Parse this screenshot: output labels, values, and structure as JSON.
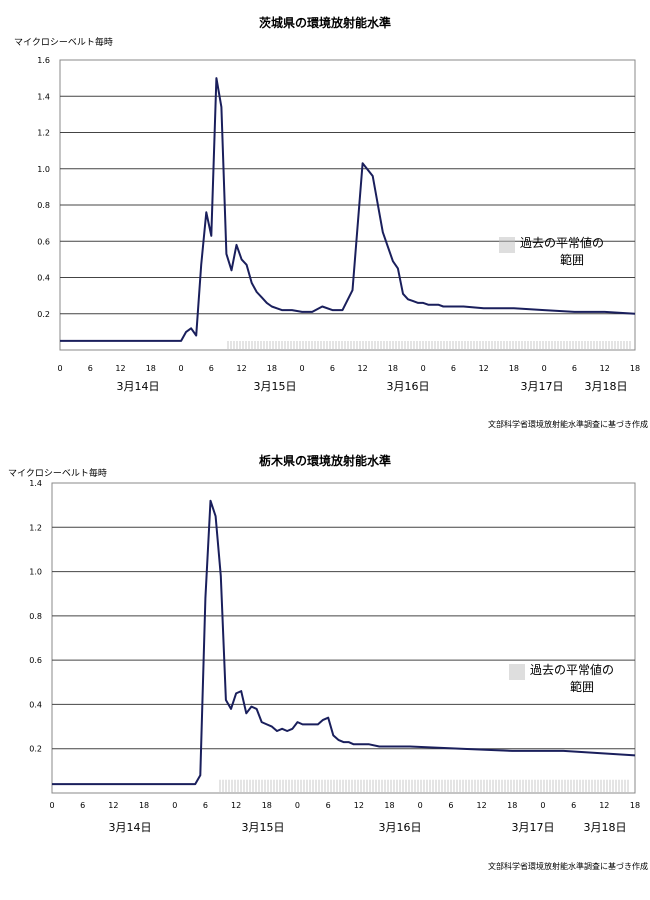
{
  "chart_data": [
    {
      "type": "line",
      "title": "茨城県の環境放射能水準",
      "ylabel": "マイクロシーベルト毎時",
      "ylim": [
        0,
        1.6
      ],
      "yticks": [
        "0.2",
        "0.4",
        "0.6",
        "0.8",
        "1.0",
        "1.2",
        "1.4",
        "1.6"
      ],
      "xlim_hours": [
        0,
        114
      ],
      "xticks": [
        "0",
        "6",
        "12",
        "18",
        "0",
        "6",
        "12",
        "18",
        "0",
        "6",
        "12",
        "18",
        "0",
        "6",
        "12",
        "18",
        "0",
        "6",
        "12",
        "18",
        "0",
        "6"
      ],
      "days": [
        "3月14日",
        "3月15日",
        "3月16日",
        "3月17日",
        "3月18日"
      ],
      "legend": [
        "過去の平常値の",
        "範囲"
      ],
      "normal_range": [
        0.0,
        0.05
      ],
      "source": "文部科学省環境放射能水準調査に基づき作成",
      "series": [
        {
          "color": "#1a1f5c",
          "x": [
            0,
            24,
            25,
            26,
            27,
            28,
            29,
            30,
            31,
            32,
            33,
            34,
            35,
            36,
            37,
            38,
            39,
            40,
            41,
            42,
            43,
            44,
            45,
            46,
            48,
            50,
            52,
            54,
            56,
            58,
            60,
            62,
            64,
            66,
            67,
            68,
            69,
            70,
            71,
            72,
            73,
            74,
            75,
            76,
            78,
            80,
            84,
            90,
            96,
            102,
            108,
            114
          ],
          "y": [
            0.05,
            0.05,
            0.1,
            0.12,
            0.08,
            0.47,
            0.76,
            0.63,
            1.5,
            1.34,
            0.53,
            0.44,
            0.58,
            0.5,
            0.47,
            0.37,
            0.32,
            0.29,
            0.26,
            0.24,
            0.23,
            0.22,
            0.22,
            0.22,
            0.21,
            0.21,
            0.24,
            0.22,
            0.22,
            0.33,
            1.03,
            0.96,
            0.65,
            0.49,
            0.45,
            0.31,
            0.28,
            0.27,
            0.26,
            0.26,
            0.25,
            0.25,
            0.25,
            0.24,
            0.24,
            0.24,
            0.23,
            0.23,
            0.22,
            0.21,
            0.21,
            0.2
          ]
        }
      ]
    },
    {
      "type": "line",
      "title": "栃木県の環境放射能水準",
      "ylabel": "マイクロシーベルト毎時",
      "ylim": [
        0,
        1.4
      ],
      "yticks": [
        "0.2",
        "0.4",
        "0.6",
        "0.8",
        "1.0",
        "1.2",
        "1.4"
      ],
      "xlim_hours": [
        0,
        114
      ],
      "xticks": [
        "0",
        "6",
        "12",
        "18",
        "0",
        "6",
        "12",
        "18",
        "0",
        "6",
        "12",
        "18",
        "0",
        "6",
        "12",
        "18",
        "0",
        "6",
        "12",
        "18",
        "0",
        "6"
      ],
      "days": [
        "3月14日",
        "3月15日",
        "3月16日",
        "3月17日",
        "3月18日"
      ],
      "legend": [
        "過去の平常値の",
        "範囲"
      ],
      "normal_range": [
        0.0,
        0.06
      ],
      "source": "文部科学省環境放射能水準調査に基づき作成",
      "series": [
        {
          "color": "#1a1f5c",
          "x": [
            0,
            28,
            29,
            30,
            31,
            32,
            33,
            34,
            35,
            36,
            37,
            38,
            39,
            40,
            41,
            42,
            43,
            44,
            45,
            46,
            47,
            48,
            49,
            50,
            51,
            52,
            53,
            54,
            55,
            56,
            57,
            58,
            59,
            60,
            62,
            64,
            70,
            80,
            90,
            100,
            114
          ],
          "y": [
            0.04,
            0.04,
            0.08,
            0.88,
            1.32,
            1.25,
            0.98,
            0.42,
            0.38,
            0.45,
            0.46,
            0.36,
            0.39,
            0.38,
            0.32,
            0.31,
            0.3,
            0.28,
            0.29,
            0.28,
            0.29,
            0.32,
            0.31,
            0.31,
            0.31,
            0.31,
            0.33,
            0.34,
            0.26,
            0.24,
            0.23,
            0.23,
            0.22,
            0.22,
            0.22,
            0.21,
            0.21,
            0.2,
            0.19,
            0.19,
            0.17
          ]
        }
      ]
    }
  ]
}
